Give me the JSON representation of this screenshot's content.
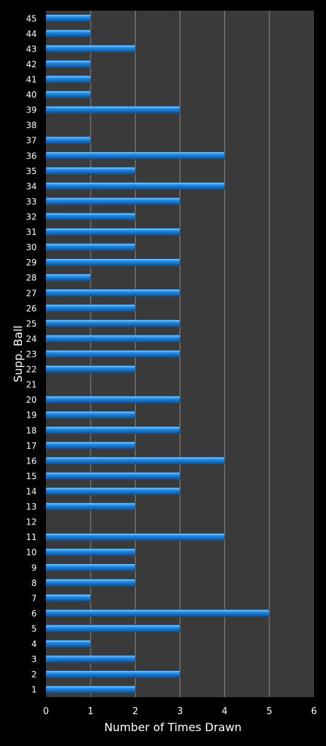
{
  "chart_data": {
    "type": "bar",
    "orientation": "horizontal",
    "categories": [
      "1",
      "2",
      "3",
      "4",
      "5",
      "6",
      "7",
      "8",
      "9",
      "10",
      "11",
      "12",
      "13",
      "14",
      "15",
      "16",
      "17",
      "18",
      "19",
      "20",
      "21",
      "22",
      "23",
      "24",
      "25",
      "26",
      "27",
      "28",
      "29",
      "30",
      "31",
      "32",
      "33",
      "34",
      "35",
      "36",
      "37",
      "38",
      "39",
      "40",
      "41",
      "42",
      "43",
      "44",
      "45"
    ],
    "values": [
      2,
      3,
      2,
      1,
      3,
      5,
      1,
      2,
      2,
      2,
      4,
      0,
      2,
      3,
      3,
      4,
      2,
      3,
      2,
      3,
      0,
      2,
      3,
      3,
      3,
      2,
      3,
      1,
      3,
      2,
      3,
      2,
      3,
      4,
      2,
      4,
      1,
      0,
      3,
      1,
      1,
      1,
      2,
      1,
      1
    ],
    "xlabel": "Number of Times Drawn",
    "ylabel": "Supp. Ball",
    "xlim": [
      0,
      6
    ],
    "xticks": [
      "0",
      "1",
      "2",
      "3",
      "4",
      "5",
      "6"
    ],
    "grid": "vertical",
    "legend": "none",
    "colors": {
      "background": "#000000",
      "plot_area": "#3a3a3a",
      "bar": "#1e8ce6",
      "bar_highlight": "#8fd0ff",
      "bar_shadow": "#0b4f96",
      "gridline": "#8a8a8a",
      "text": "#ffffff"
    }
  }
}
